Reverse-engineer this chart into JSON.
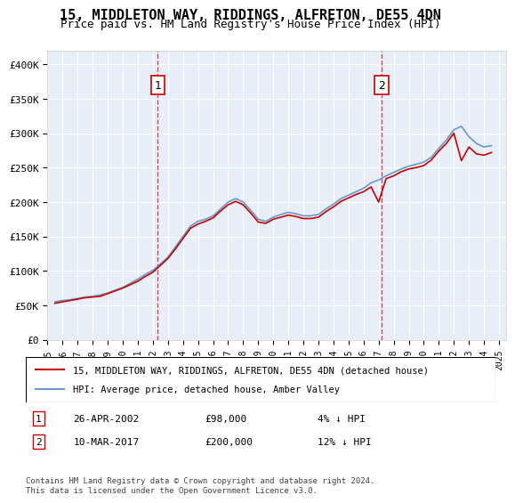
{
  "title": "15, MIDDLETON WAY, RIDDINGS, ALFRETON, DE55 4DN",
  "subtitle": "Price paid vs. HM Land Registry's House Price Index (HPI)",
  "ylabel_ticks": [
    "£0",
    "£50K",
    "£100K",
    "£150K",
    "£200K",
    "£250K",
    "£300K",
    "£350K",
    "£400K"
  ],
  "ytick_values": [
    0,
    50000,
    100000,
    150000,
    200000,
    250000,
    300000,
    350000,
    400000
  ],
  "ylim": [
    0,
    420000
  ],
  "xlim_start": 1995.0,
  "xlim_end": 2025.5,
  "hpi_color": "#6699cc",
  "price_color": "#cc0000",
  "bg_color": "#e8eef8",
  "grid_color": "#ffffff",
  "marker1_x": 2002.32,
  "marker1_y": 98000,
  "marker1_label": "1",
  "marker2_x": 2017.19,
  "marker2_y": 200000,
  "marker2_label": "2",
  "vline_color": "#cc0000",
  "annotation1": [
    "1",
    "26-APR-2002",
    "£98,000",
    "4% ↓ HPI"
  ],
  "annotation2": [
    "2",
    "10-MAR-2017",
    "£200,000",
    "12% ↓ HPI"
  ],
  "legend_line1": "15, MIDDLETON WAY, RIDDINGS, ALFRETON, DE55 4DN (detached house)",
  "legend_line2": "HPI: Average price, detached house, Amber Valley",
  "footer": "Contains HM Land Registry data © Crown copyright and database right 2024.\nThis data is licensed under the Open Government Licence v3.0.",
  "hpi_data": {
    "years": [
      1995.5,
      1996.0,
      1996.5,
      1997.0,
      1997.5,
      1998.0,
      1998.5,
      1999.0,
      1999.5,
      2000.0,
      2000.5,
      2001.0,
      2001.5,
      2002.0,
      2002.5,
      2003.0,
      2003.5,
      2004.0,
      2004.5,
      2005.0,
      2005.5,
      2006.0,
      2006.5,
      2007.0,
      2007.5,
      2008.0,
      2008.5,
      2009.0,
      2009.5,
      2010.0,
      2010.5,
      2011.0,
      2011.5,
      2012.0,
      2012.5,
      2013.0,
      2013.5,
      2014.0,
      2014.5,
      2015.0,
      2015.5,
      2016.0,
      2016.5,
      2017.0,
      2017.5,
      2018.0,
      2018.5,
      2019.0,
      2019.5,
      2020.0,
      2020.5,
      2021.0,
      2021.5,
      2022.0,
      2022.5,
      2023.0,
      2023.5,
      2024.0,
      2024.5
    ],
    "values": [
      55000,
      57000,
      58000,
      60000,
      62000,
      63000,
      65000,
      68000,
      72000,
      76000,
      82000,
      88000,
      95000,
      101000,
      110000,
      120000,
      135000,
      150000,
      165000,
      172000,
      175000,
      180000,
      190000,
      200000,
      205000,
      200000,
      188000,
      175000,
      172000,
      178000,
      182000,
      185000,
      183000,
      180000,
      180000,
      182000,
      190000,
      197000,
      205000,
      210000,
      215000,
      220000,
      228000,
      232000,
      238000,
      243000,
      248000,
      252000,
      255000,
      258000,
      265000,
      278000,
      290000,
      305000,
      310000,
      295000,
      285000,
      280000,
      282000
    ]
  },
  "price_data": {
    "years": [
      1995.5,
      1996.0,
      1996.5,
      1997.0,
      1997.5,
      1998.0,
      1998.5,
      1999.0,
      1999.5,
      2000.0,
      2000.5,
      2001.0,
      2001.5,
      2002.0,
      2002.5,
      2003.0,
      2003.5,
      2004.0,
      2004.5,
      2005.0,
      2005.5,
      2006.0,
      2006.5,
      2007.0,
      2007.5,
      2008.0,
      2008.5,
      2009.0,
      2009.5,
      2010.0,
      2010.5,
      2011.0,
      2011.5,
      2012.0,
      2012.5,
      2013.0,
      2013.5,
      2014.0,
      2014.5,
      2015.0,
      2015.5,
      2016.0,
      2016.5,
      2017.0,
      2017.5,
      2018.0,
      2018.5,
      2019.0,
      2019.5,
      2020.0,
      2020.5,
      2021.0,
      2021.5,
      2022.0,
      2022.5,
      2023.0,
      2023.5,
      2024.0,
      2024.5
    ],
    "values": [
      53000,
      55000,
      57000,
      59000,
      61000,
      62000,
      63000,
      67000,
      71000,
      75000,
      80000,
      85000,
      92000,
      98000,
      108000,
      118000,
      132000,
      147000,
      162000,
      168000,
      172000,
      177000,
      187000,
      196000,
      201000,
      196000,
      184000,
      171000,
      169000,
      175000,
      178000,
      181000,
      179000,
      176000,
      176000,
      178000,
      186000,
      193000,
      201000,
      206000,
      211000,
      215000,
      222000,
      200000,
      234000,
      238000,
      244000,
      248000,
      250000,
      253000,
      261000,
      274000,
      285000,
      300000,
      260000,
      280000,
      270000,
      268000,
      272000
    ]
  }
}
